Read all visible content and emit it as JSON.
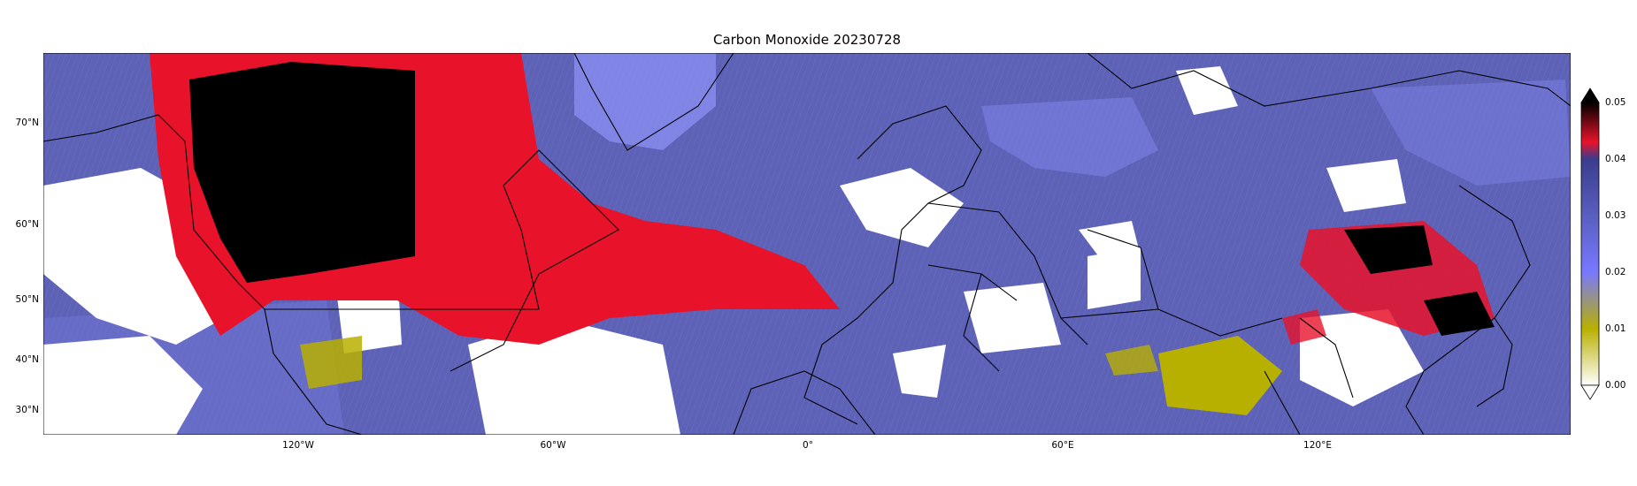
{
  "title": "Carbon Monoxide 20230728",
  "latitude_labels": [
    "70°N",
    "60°N",
    "50°N",
    "40°N",
    "30°N"
  ],
  "longitude_labels": [
    "120°W",
    "60°W",
    "0°",
    "60°E",
    "120°E"
  ],
  "colorbar": {
    "ticks": [
      "0.00",
      "0.01",
      "0.02",
      "0.03",
      "0.04",
      "0.05"
    ],
    "extend": "both",
    "colors": [
      "#ffffff",
      "#b8b000",
      "#7878ff",
      "#3a3c8e",
      "#e8132a",
      "#000000"
    ]
  },
  "background_colors": {
    "base": "#5d62b7",
    "missing": "#ffffff",
    "coastline": "#000000"
  }
}
